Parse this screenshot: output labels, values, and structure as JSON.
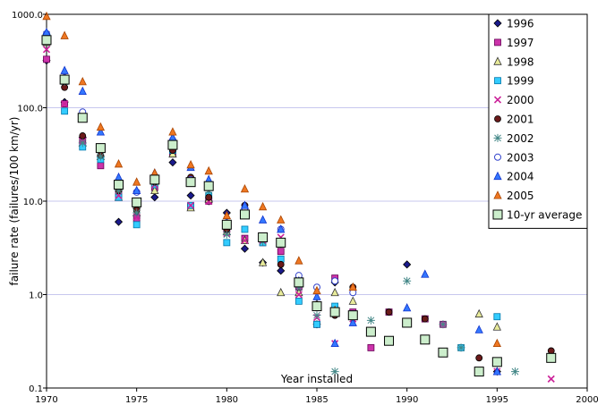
{
  "chart_data": {
    "type": "scatter",
    "title": "",
    "xlabel": "Year installed",
    "ylabel": "failure rate (failures/100 km/yr)",
    "xlim": [
      1970,
      2000
    ],
    "ylim": [
      0.1,
      1000
    ],
    "y_scale": "log",
    "x_ticks": [
      1970,
      1975,
      1980,
      1985,
      1990,
      1995,
      2000
    ],
    "x_tick_labels": [
      "1970",
      "1975",
      "1980",
      "1985",
      "1990",
      "1995",
      "2000"
    ],
    "y_ticks": [
      0.1,
      1,
      10,
      100,
      1000
    ],
    "y_tick_labels": [
      "0.1",
      "1.0",
      "10.0",
      "100.0",
      "1000.0"
    ],
    "grid": "horizontal",
    "legend_position": "top-right",
    "series": [
      {
        "name": "1996",
        "marker": "diamond",
        "fill": "#1a1a8c",
        "stroke": "#000000",
        "points": [
          [
            1970,
            320
          ],
          [
            1971,
            115
          ],
          [
            1972,
            48
          ],
          [
            1973,
            30
          ],
          [
            1974,
            6
          ],
          [
            1975,
            7
          ],
          [
            1976,
            11
          ],
          [
            1977,
            26
          ],
          [
            1978,
            11.5
          ],
          [
            1979,
            10
          ],
          [
            1980,
            7.5
          ],
          [
            1981,
            3.1
          ],
          [
            1982,
            2.2
          ],
          [
            1983,
            1.8
          ],
          [
            1984,
            1.3
          ],
          [
            1985,
            0.48
          ],
          [
            1986,
            1.35
          ],
          [
            1987,
            0.6
          ],
          [
            1990,
            2.1
          ],
          [
            1995,
            0.15
          ]
        ]
      },
      {
        "name": "1997",
        "marker": "square",
        "fill": "#cc33aa",
        "stroke": "#660055",
        "points": [
          [
            1970,
            330
          ],
          [
            1971,
            110
          ],
          [
            1972,
            45
          ],
          [
            1973,
            24
          ],
          [
            1974,
            12
          ],
          [
            1975,
            6.5
          ],
          [
            1976,
            14
          ],
          [
            1977,
            32
          ],
          [
            1978,
            8.8
          ],
          [
            1979,
            10
          ],
          [
            1980,
            5
          ],
          [
            1981,
            4
          ],
          [
            1982,
            3.6
          ],
          [
            1983,
            2.9
          ],
          [
            1984,
            1.2
          ],
          [
            1985,
            0.48
          ],
          [
            1986,
            1.5
          ],
          [
            1987,
            0.65
          ],
          [
            1988,
            0.27
          ],
          [
            1989,
            0.65
          ],
          [
            1990,
            0.5
          ],
          [
            1991,
            0.55
          ],
          [
            1992,
            0.48
          ]
        ]
      },
      {
        "name": "1998",
        "marker": "triangle",
        "fill": "#e8eb9a",
        "stroke": "#333333",
        "points": [
          [
            1970,
            500
          ],
          [
            1971,
            200
          ],
          [
            1972,
            42
          ],
          [
            1973,
            30
          ],
          [
            1974,
            11
          ],
          [
            1975,
            9
          ],
          [
            1976,
            13
          ],
          [
            1977,
            32
          ],
          [
            1978,
            8.5
          ],
          [
            1979,
            10.5
          ],
          [
            1980,
            4.7
          ],
          [
            1981,
            3.8
          ],
          [
            1982,
            2.2
          ],
          [
            1983,
            1.05
          ],
          [
            1984,
            1.05
          ],
          [
            1985,
            0.8
          ],
          [
            1986,
            1.05
          ],
          [
            1987,
            0.85
          ],
          [
            1994,
            0.62
          ],
          [
            1995,
            0.45
          ]
        ]
      },
      {
        "name": "1999",
        "marker": "square",
        "fill": "#33ccff",
        "stroke": "#0077aa",
        "points": [
          [
            1970,
            580
          ],
          [
            1971,
            92
          ],
          [
            1972,
            38
          ],
          [
            1973,
            28
          ],
          [
            1974,
            11
          ],
          [
            1975,
            5.6
          ],
          [
            1976,
            15
          ],
          [
            1977,
            35
          ],
          [
            1978,
            9
          ],
          [
            1979,
            11.5
          ],
          [
            1980,
            3.6
          ],
          [
            1981,
            5
          ],
          [
            1982,
            3.6
          ],
          [
            1983,
            2.4
          ],
          [
            1984,
            0.85
          ],
          [
            1985,
            0.48
          ],
          [
            1986,
            0.75
          ],
          [
            1987,
            0.62
          ],
          [
            1993,
            0.27
          ],
          [
            1995,
            0.58
          ]
        ]
      },
      {
        "name": "2000",
        "marker": "x",
        "fill": "#cc2299",
        "stroke": "#cc2299",
        "points": [
          [
            1970,
            420
          ],
          [
            1971,
            110
          ],
          [
            1972,
            44
          ],
          [
            1973,
            33
          ],
          [
            1974,
            11.5
          ],
          [
            1975,
            6.8
          ],
          [
            1976,
            15
          ],
          [
            1977,
            38
          ],
          [
            1978,
            9
          ],
          [
            1979,
            10
          ],
          [
            1980,
            4.5
          ],
          [
            1981,
            3.8
          ],
          [
            1982,
            3.8
          ],
          [
            1983,
            4.1
          ],
          [
            1984,
            1.0
          ],
          [
            1985,
            0.57
          ],
          [
            1986,
            0.3
          ],
          [
            1987,
            0.55
          ],
          [
            1994,
            0.15
          ],
          [
            1995,
            0.15
          ],
          [
            1998,
            0.125
          ]
        ]
      },
      {
        "name": "2001",
        "marker": "circle",
        "fill": "#6b1a1a",
        "stroke": "#000000",
        "points": [
          [
            1970,
            520
          ],
          [
            1971,
            165
          ],
          [
            1972,
            50
          ],
          [
            1973,
            31
          ],
          [
            1974,
            13
          ],
          [
            1975,
            8
          ],
          [
            1976,
            16
          ],
          [
            1977,
            35
          ],
          [
            1978,
            18
          ],
          [
            1979,
            11
          ],
          [
            1980,
            5
          ],
          [
            1981,
            9
          ],
          [
            1982,
            4
          ],
          [
            1983,
            2.1
          ],
          [
            1984,
            1.5
          ],
          [
            1985,
            0.75
          ],
          [
            1986,
            0.6
          ],
          [
            1987,
            1.2
          ],
          [
            1989,
            0.65
          ],
          [
            1991,
            0.55
          ],
          [
            1994,
            0.21
          ],
          [
            1998,
            0.25
          ]
        ]
      },
      {
        "name": "2002",
        "marker": "asterisk",
        "fill": "#66aaaa",
        "stroke": "#448888",
        "points": [
          [
            1970,
            610
          ],
          [
            1971,
            190
          ],
          [
            1972,
            42
          ],
          [
            1973,
            30
          ],
          [
            1974,
            13
          ],
          [
            1975,
            7.5
          ],
          [
            1976,
            16
          ],
          [
            1977,
            40
          ],
          [
            1978,
            16
          ],
          [
            1979,
            13
          ],
          [
            1980,
            4.4
          ],
          [
            1981,
            7.8
          ],
          [
            1982,
            3.7
          ],
          [
            1983,
            3.5
          ],
          [
            1984,
            1.2
          ],
          [
            1985,
            0.6
          ],
          [
            1986,
            0.15
          ],
          [
            1987,
            0.62
          ],
          [
            1988,
            0.53
          ],
          [
            1990,
            1.4
          ],
          [
            1992,
            0.48
          ],
          [
            1993,
            0.27
          ],
          [
            1996,
            0.15
          ]
        ]
      },
      {
        "name": "2003",
        "marker": "circle-open",
        "fill": "#ffffff",
        "stroke": "#3344cc",
        "points": [
          [
            1970,
            620
          ],
          [
            1971,
            210
          ],
          [
            1972,
            90
          ],
          [
            1973,
            38
          ],
          [
            1974,
            15
          ],
          [
            1975,
            12.5
          ],
          [
            1976,
            18
          ],
          [
            1977,
            45
          ],
          [
            1978,
            17
          ],
          [
            1979,
            15
          ],
          [
            1980,
            5.8
          ],
          [
            1981,
            8
          ],
          [
            1982,
            4.2
          ],
          [
            1983,
            5
          ],
          [
            1984,
            1.6
          ],
          [
            1985,
            1.2
          ],
          [
            1986,
            1.4
          ],
          [
            1987,
            1.05
          ]
        ]
      },
      {
        "name": "2004",
        "marker": "triangle",
        "fill": "#3377ff",
        "stroke": "#1133cc",
        "points": [
          [
            1970,
            640
          ],
          [
            1971,
            250
          ],
          [
            1972,
            150
          ],
          [
            1973,
            55
          ],
          [
            1974,
            18
          ],
          [
            1975,
            13
          ],
          [
            1976,
            20
          ],
          [
            1977,
            48
          ],
          [
            1978,
            23
          ],
          [
            1979,
            17
          ],
          [
            1980,
            6
          ],
          [
            1981,
            9
          ],
          [
            1982,
            6.3
          ],
          [
            1983,
            5
          ],
          [
            1984,
            1.4
          ],
          [
            1985,
            0.95
          ],
          [
            1986,
            0.3
          ],
          [
            1987,
            0.5
          ],
          [
            1990,
            0.72
          ],
          [
            1991,
            1.65
          ],
          [
            1994,
            0.42
          ],
          [
            1995,
            0.15
          ]
        ]
      },
      {
        "name": "2005",
        "marker": "triangle",
        "fill": "#ee7722",
        "stroke": "#aa4400",
        "points": [
          [
            1970,
            950
          ],
          [
            1971,
            590
          ],
          [
            1972,
            190
          ],
          [
            1973,
            62
          ],
          [
            1974,
            25
          ],
          [
            1975,
            16
          ],
          [
            1976,
            20
          ],
          [
            1977,
            55
          ],
          [
            1978,
            24.5
          ],
          [
            1979,
            21
          ],
          [
            1980,
            7
          ],
          [
            1981,
            13.5
          ],
          [
            1982,
            8.7
          ],
          [
            1983,
            6.3
          ],
          [
            1984,
            2.3
          ],
          [
            1985,
            1.1
          ],
          [
            1986,
            0.68
          ],
          [
            1987,
            1.2
          ],
          [
            1995,
            0.3
          ]
        ]
      },
      {
        "name": "10-yr average",
        "marker": "square-large",
        "fill": "#cceecc",
        "stroke": "#000000",
        "points": [
          [
            1970,
            530
          ],
          [
            1971,
            200
          ],
          [
            1972,
            78
          ],
          [
            1973,
            37
          ],
          [
            1974,
            15
          ],
          [
            1975,
            9.7
          ],
          [
            1976,
            17
          ],
          [
            1977,
            40
          ],
          [
            1978,
            16
          ],
          [
            1979,
            14.5
          ],
          [
            1980,
            5.6
          ],
          [
            1981,
            7.2
          ],
          [
            1982,
            4.1
          ],
          [
            1983,
            3.6
          ],
          [
            1984,
            1.35
          ],
          [
            1985,
            0.75
          ],
          [
            1986,
            0.65
          ],
          [
            1987,
            0.6
          ],
          [
            1988,
            0.4
          ],
          [
            1989,
            0.32
          ],
          [
            1990,
            0.5
          ],
          [
            1991,
            0.33
          ],
          [
            1992,
            0.24
          ],
          [
            1994,
            0.15
          ],
          [
            1995,
            0.19
          ],
          [
            1998,
            0.21
          ]
        ]
      }
    ]
  }
}
